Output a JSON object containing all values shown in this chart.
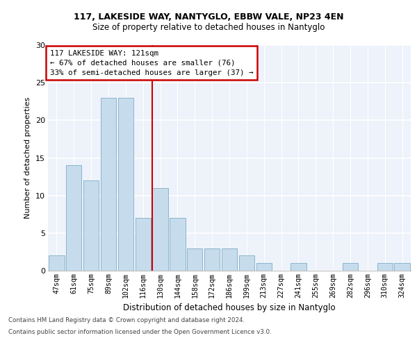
{
  "title1": "117, LAKESIDE WAY, NANTYGLO, EBBW VALE, NP23 4EN",
  "title2": "Size of property relative to detached houses in Nantyglo",
  "xlabel": "Distribution of detached houses by size in Nantyglo",
  "ylabel": "Number of detached properties",
  "categories": [
    "47sqm",
    "61sqm",
    "75sqm",
    "89sqm",
    "102sqm",
    "116sqm",
    "130sqm",
    "144sqm",
    "158sqm",
    "172sqm",
    "186sqm",
    "199sqm",
    "213sqm",
    "227sqm",
    "241sqm",
    "255sqm",
    "269sqm",
    "282sqm",
    "296sqm",
    "310sqm",
    "324sqm"
  ],
  "values": [
    2,
    14,
    12,
    23,
    23,
    7,
    11,
    7,
    3,
    3,
    3,
    2,
    1,
    0,
    1,
    0,
    0,
    1,
    0,
    1,
    1
  ],
  "bar_color": "#c6dcec",
  "bar_edge_color": "#8ab4cc",
  "property_line_x": 5.55,
  "annotation_title": "117 LAKESIDE WAY: 121sqm",
  "annotation_line1": "← 67% of detached houses are smaller (76)",
  "annotation_line2": "33% of semi-detached houses are larger (37) →",
  "annotation_box_color": "#ffffff",
  "annotation_box_edge": "#cc0000",
  "vline_color": "#cc0000",
  "ylim": [
    0,
    30
  ],
  "yticks": [
    0,
    5,
    10,
    15,
    20,
    25,
    30
  ],
  "footer1": "Contains HM Land Registry data © Crown copyright and database right 2024.",
  "footer2": "Contains public sector information licensed under the Open Government Licence v3.0.",
  "bg_color": "#eef2fa",
  "grid_color": "#ffffff"
}
